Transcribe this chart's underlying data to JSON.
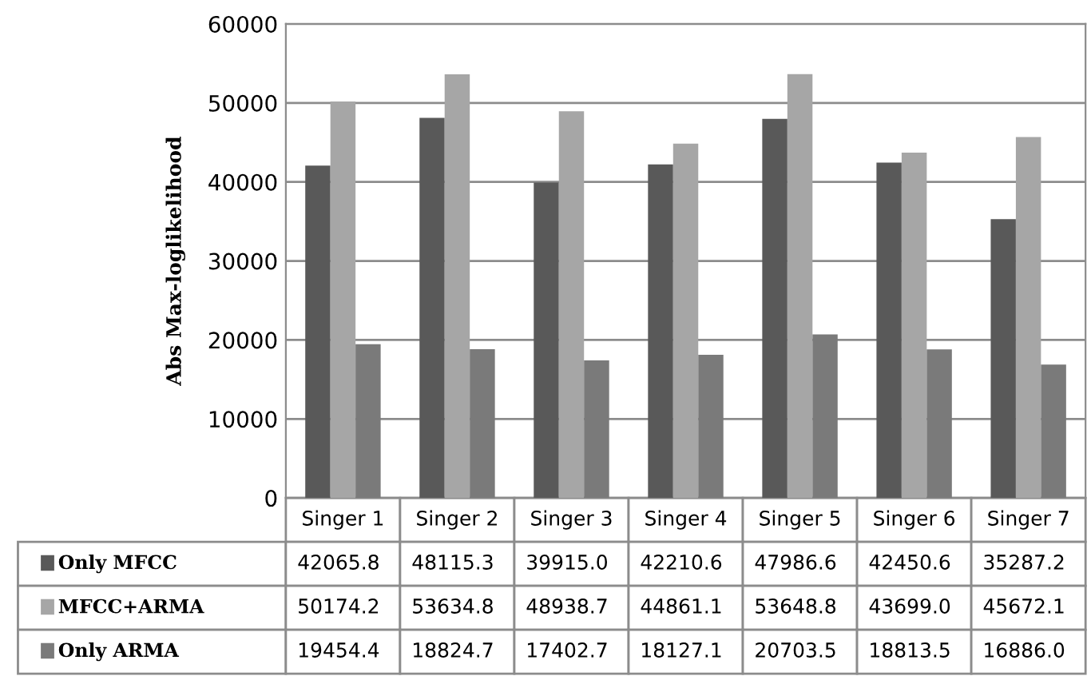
{
  "chart_data": {
    "type": "bar",
    "ylabel": "Abs Max-loglikelihood",
    "categories": [
      "Singer 1",
      "Singer 2",
      "Singer 3",
      "Singer 4",
      "Singer 5",
      "Singer 6",
      "Singer 7"
    ],
    "series": [
      {
        "name": "Only MFCC",
        "color": "#595959",
        "values": [
          42065.8,
          48115.3,
          39915.0,
          42210.6,
          47986.6,
          42450.6,
          35287.2
        ],
        "value_labels": [
          "42065.8",
          "48115.3",
          "39915.0",
          "42210.6",
          "47986.6",
          "42450.6",
          "35287.2"
        ]
      },
      {
        "name": "MFCC+ARMA",
        "color": "#a6a6a6",
        "values": [
          50174.2,
          53634.8,
          48938.7,
          44861.1,
          53648.8,
          43699.0,
          45672.1
        ],
        "value_labels": [
          "50174.2",
          "53634.8",
          "48938.7",
          "44861.1",
          "53648.8",
          "43699.0",
          "45672.1"
        ]
      },
      {
        "name": "Only ARMA",
        "color": "#7a7a7a",
        "values": [
          19454.4,
          18824.7,
          17402.7,
          18127.1,
          20703.5,
          18813.5,
          16886.0
        ],
        "value_labels": [
          "19454.4",
          "18824.7",
          "17402.7",
          "18127.1",
          "20703.5",
          "18813.5",
          "16886.0"
        ]
      }
    ],
    "ylim": [
      0,
      60000
    ],
    "yticks": [
      0,
      10000,
      20000,
      30000,
      40000,
      50000,
      60000
    ],
    "grid": "y",
    "legend": "bottom"
  }
}
